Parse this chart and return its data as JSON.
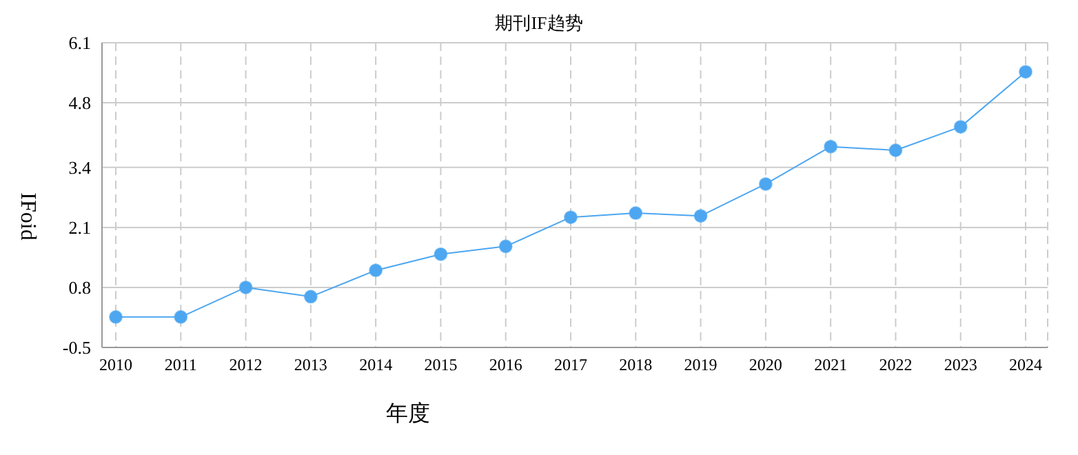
{
  "chart_data": {
    "type": "line",
    "title": "期刊IF趋势",
    "xlabel": "年度",
    "ylabel": "IFoid",
    "categories": [
      "2010",
      "2011",
      "2012",
      "2013",
      "2014",
      "2015",
      "2016",
      "2017",
      "2018",
      "2019",
      "2020",
      "2021",
      "2022",
      "2023",
      "2024"
    ],
    "series": [
      {
        "color": "#4da6f0",
        "values": [
          0.16,
          0.16,
          0.8,
          0.6,
          1.17,
          1.52,
          1.69,
          2.32,
          2.41,
          2.35,
          3.04,
          3.85,
          3.77,
          4.28,
          5.47
        ]
      }
    ],
    "ylim": [
      -0.5,
      6.1
    ],
    "yticks": [
      -0.5,
      0.8,
      2.1,
      3.4,
      4.8,
      6.1
    ],
    "grid": true,
    "marker": "circle",
    "line_style": "solid",
    "legend": false
  }
}
